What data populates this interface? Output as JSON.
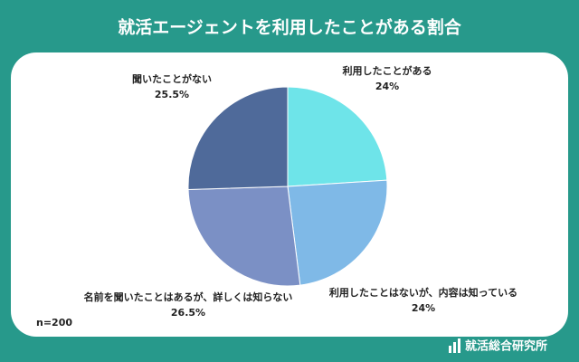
{
  "chart_data": {
    "type": "pie",
    "title": "就活エージェントを利用したことがある割合",
    "categories": [
      "利用したことがある",
      "利用したことはないが、内容は知っている",
      "名前を聞いたことはあるが、詳しくは知らない",
      "聞いたことがない"
    ],
    "values": [
      24,
      24,
      26.5,
      25.5
    ],
    "value_labels": [
      "24%",
      "24%",
      "26.5%",
      "25.5%"
    ],
    "colors": [
      "#6ee4e9",
      "#7fb9e7",
      "#7b90c5",
      "#4f6a9a"
    ],
    "note": "n=200",
    "source": "就活総合研究所"
  }
}
